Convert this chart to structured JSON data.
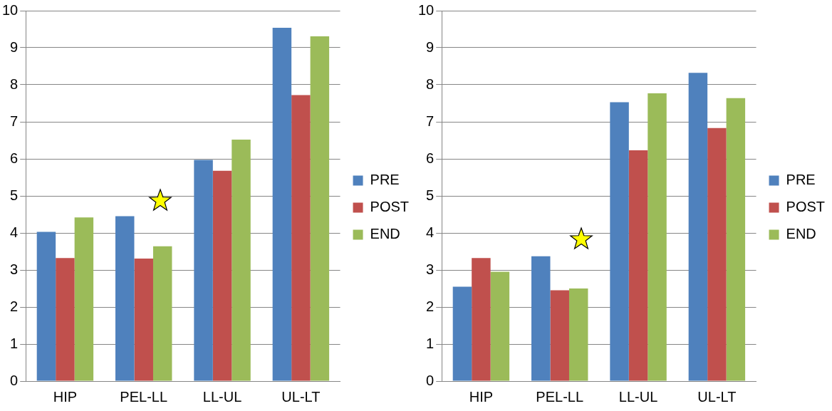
{
  "chart_data": [
    {
      "type": "bar",
      "categories": [
        "HIP",
        "PEL-LL",
        "LL-UL",
        "UL-LT"
      ],
      "series": [
        {
          "name": "PRE",
          "color": "#4f81bd",
          "values": [
            4.03,
            4.45,
            5.97,
            9.54
          ]
        },
        {
          "name": "POST",
          "color": "#c0504d",
          "values": [
            3.32,
            3.31,
            5.68,
            7.72
          ]
        },
        {
          "name": "END",
          "color": "#9bbb59",
          "values": [
            4.42,
            3.64,
            6.52,
            9.31
          ]
        }
      ],
      "ylim": [
        0,
        10
      ],
      "yticks": [
        0,
        1,
        2,
        3,
        4,
        5,
        6,
        7,
        8,
        9,
        10
      ],
      "grid": "y",
      "legend": "right"
    },
    {
      "type": "bar",
      "categories": [
        "HIP",
        "PEL-LL",
        "LL-UL",
        "UL-LT"
      ],
      "series": [
        {
          "name": "PRE",
          "color": "#4f81bd",
          "values": [
            2.55,
            3.37,
            7.53,
            8.32
          ]
        },
        {
          "name": "POST",
          "color": "#c0504d",
          "values": [
            3.32,
            2.45,
            6.23,
            6.83
          ]
        },
        {
          "name": "END",
          "color": "#9bbb59",
          "values": [
            2.95,
            2.5,
            7.77,
            7.64
          ]
        }
      ],
      "ylim": [
        0,
        10
      ],
      "yticks": [
        0,
        1,
        2,
        3,
        4,
        5,
        6,
        7,
        8,
        9,
        10
      ],
      "grid": "y",
      "legend": "right"
    }
  ]
}
